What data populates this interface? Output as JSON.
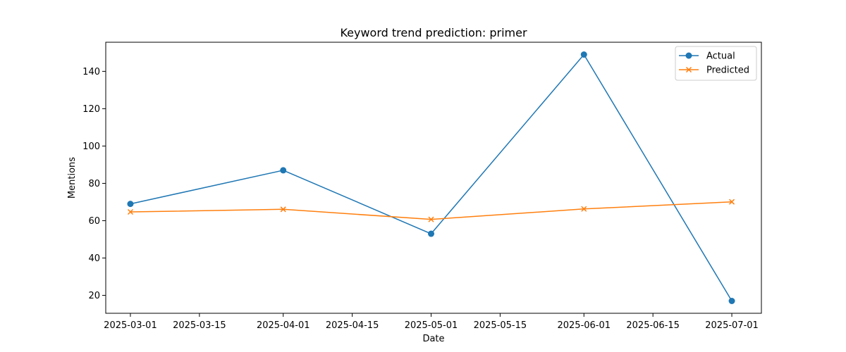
{
  "chart_data": {
    "type": "line",
    "title": "Keyword trend prediction: primer",
    "xlabel": "Date",
    "ylabel": "Mentions",
    "x": [
      "2025-03-01",
      "2025-04-01",
      "2025-05-01",
      "2025-06-01",
      "2025-07-01"
    ],
    "xlim": [
      "2025-02-24",
      "2025-07-07"
    ],
    "ylim": [
      10.4,
      155.6
    ],
    "xticks": [
      "2025-03-01",
      "2025-03-15",
      "2025-04-01",
      "2025-04-15",
      "2025-05-01",
      "2025-05-15",
      "2025-06-01",
      "2025-06-15",
      "2025-07-01"
    ],
    "yticks": [
      20,
      40,
      60,
      80,
      100,
      120,
      140
    ],
    "grid": false,
    "legend_position": "top-right",
    "series": [
      {
        "name": "Actual",
        "values": [
          69,
          87,
          53,
          149,
          17
        ],
        "color": "#1f77b4",
        "marker": "circle"
      },
      {
        "name": "Predicted",
        "values": [
          64.7,
          66.1,
          60.7,
          66.3,
          70.1
        ],
        "color": "#ff7f0e",
        "marker": "x"
      }
    ]
  }
}
